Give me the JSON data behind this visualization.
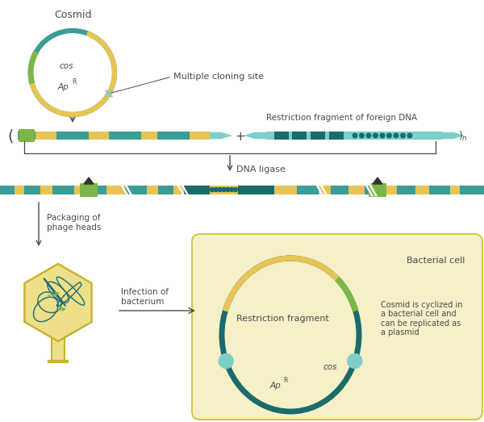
{
  "bg_color": "#ffffff",
  "teal_dark": "#1a6b6b",
  "teal_mid": "#3a9d96",
  "teal_pale": "#7ececa",
  "yellow_gold": "#e8c455",
  "green_seg": "#7ab648",
  "beige_bg": "#f5f0c8",
  "beige_border": "#d4c840",
  "label_color": "#4a4a4a",
  "text_cosmid": "Cosmid",
  "text_cos": "cos",
  "text_apr": "Ap",
  "text_mcs": "Multiple cloning site",
  "text_restr": "Restriction fragment of foreign DNA",
  "text_ligase": "DNA ligase",
  "text_packaging": "Packaging of\nphage heads",
  "text_infection": "Infection of\nbacterium",
  "text_bact": "Bacterial cell",
  "text_restr_frag": "Restriction fragment",
  "text_cosmid_cycl": "Cosmid is cyclized in\na bacterial cell and\ncan be replicated as\na plasmid",
  "text_cos2": "cos",
  "fig_w": 6.0,
  "fig_h": 5.23,
  "dpi": 100
}
